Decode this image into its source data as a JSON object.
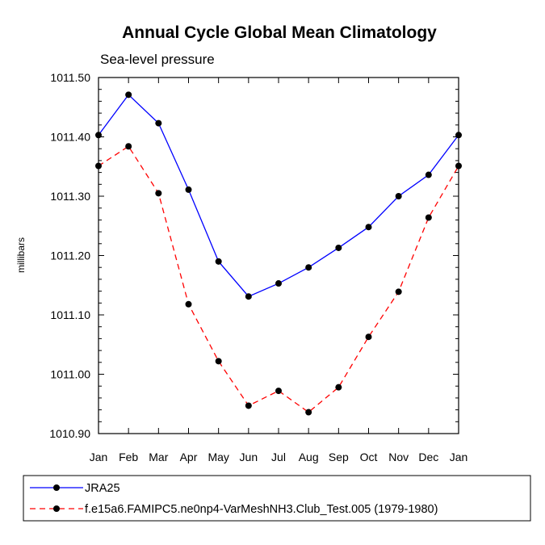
{
  "chart_data": {
    "type": "line",
    "title": "Annual Cycle Global Mean Climatology",
    "subtitle": "Sea-level pressure",
    "xlabel": "",
    "ylabel": "millibars",
    "categories": [
      "Jan",
      "Feb",
      "Mar",
      "Apr",
      "May",
      "Jun",
      "Jul",
      "Aug",
      "Sep",
      "Oct",
      "Nov",
      "Dec",
      "Jan"
    ],
    "ylim": [
      1010.9,
      1011.5
    ],
    "yticks": [
      "1010.90",
      "1011.00",
      "1011.10",
      "1011.20",
      "1011.30",
      "1011.40",
      "1011.50"
    ],
    "series": [
      {
        "name": "JRA25",
        "color": "#0000ff",
        "dash": "solid",
        "values": [
          1011.403,
          1011.471,
          1011.423,
          1011.311,
          1011.19,
          1011.131,
          1011.153,
          1011.18,
          1011.213,
          1011.248,
          1011.3,
          1011.336,
          1011.403
        ]
      },
      {
        "name": "f.e15a6.FAMIPC5.ne0np4-VarMeshNH3.Club_Test.005 (1979-1980)",
        "color": "#ff0000",
        "dash": "dashed",
        "values": [
          1011.351,
          1011.384,
          1011.305,
          1011.118,
          1011.022,
          1010.947,
          1010.972,
          1010.936,
          1010.978,
          1011.063,
          1011.139,
          1011.264,
          1011.351
        ]
      }
    ],
    "grid": false,
    "legend_position": "bottom"
  }
}
